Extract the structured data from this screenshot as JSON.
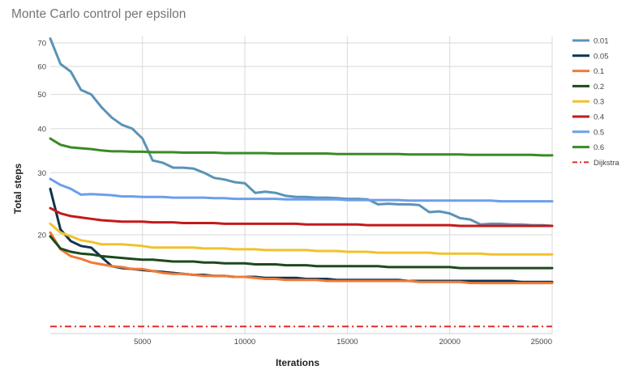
{
  "chart_data": {
    "type": "line",
    "title": "Monte Carlo control per epsilon",
    "xlabel": "Iterations",
    "ylabel": "Total steps",
    "y_scale": "log",
    "grid": true,
    "legend_position": "right",
    "xlim": [
      500,
      25000
    ],
    "ylim": [
      10.5,
      73
    ],
    "x_ticks": [
      {
        "value": 5000,
        "label": "5000"
      },
      {
        "value": 10000,
        "label": "10000"
      },
      {
        "value": 15000,
        "label": "15000"
      },
      {
        "value": 20000,
        "label": "20000"
      },
      {
        "value": 25000,
        "label": "25000"
      }
    ],
    "y_ticks": [
      {
        "value": 20,
        "label": "20"
      },
      {
        "value": 30,
        "label": "30"
      },
      {
        "value": 40,
        "label": "40"
      },
      {
        "value": 50,
        "label": "50"
      },
      {
        "value": 60,
        "label": "60"
      },
      {
        "value": 70,
        "label": "70"
      }
    ],
    "x": [
      500,
      1000,
      1500,
      2000,
      2500,
      3000,
      3500,
      4000,
      4500,
      5000,
      5500,
      6000,
      6500,
      7000,
      7500,
      8000,
      8500,
      9000,
      9500,
      10000,
      10500,
      11000,
      11500,
      12000,
      12500,
      13000,
      13500,
      14000,
      14500,
      15000,
      15500,
      16000,
      16500,
      17000,
      17500,
      18000,
      18500,
      19000,
      19500,
      20000,
      20500,
      21000,
      21500,
      22000,
      22500,
      23000,
      23500,
      24000,
      24500,
      25000
    ],
    "series": [
      {
        "name": "0.01",
        "color": "#5b93b6",
        "dash": "solid",
        "values": [
          72,
          61,
          58,
          51.5,
          50,
          46,
          43,
          41,
          40,
          37.5,
          32.5,
          32,
          31,
          31,
          30.8,
          30,
          29,
          28.7,
          28.2,
          28,
          26.3,
          26.5,
          26.3,
          25.8,
          25.6,
          25.6,
          25.5,
          25.5,
          25.4,
          25.3,
          25.3,
          25.2,
          24.4,
          24.5,
          24.4,
          24.4,
          24.3,
          23.2,
          23.3,
          23,
          22.3,
          22.1,
          21.4,
          21.5,
          21.5,
          21.4,
          21.4,
          21.3,
          21.3,
          21.2
        ]
      },
      {
        "name": "0.05",
        "color": "#0f3350",
        "dash": "solid",
        "values": [
          27,
          20.7,
          19.2,
          18.6,
          18.4,
          17.3,
          16.3,
          16.1,
          16.0,
          15.9,
          15.8,
          15.7,
          15.6,
          15.5,
          15.4,
          15.4,
          15.3,
          15.3,
          15.2,
          15.2,
          15.2,
          15.1,
          15.1,
          15.1,
          15.1,
          15.0,
          15.0,
          15.0,
          14.9,
          14.9,
          14.9,
          14.9,
          14.9,
          14.9,
          14.9,
          14.8,
          14.8,
          14.8,
          14.8,
          14.8,
          14.8,
          14.8,
          14.8,
          14.8,
          14.8,
          14.8,
          14.7,
          14.7,
          14.7,
          14.7
        ]
      },
      {
        "name": "0.1",
        "color": "#f07a36",
        "dash": "solid",
        "values": [
          20.3,
          18.2,
          17.4,
          17.1,
          16.7,
          16.5,
          16.3,
          16.2,
          16.0,
          16.0,
          15.8,
          15.6,
          15.5,
          15.5,
          15.4,
          15.3,
          15.3,
          15.3,
          15.2,
          15.2,
          15.1,
          15.0,
          15.0,
          14.9,
          14.9,
          14.9,
          14.9,
          14.8,
          14.8,
          14.8,
          14.8,
          14.8,
          14.8,
          14.8,
          14.8,
          14.8,
          14.7,
          14.7,
          14.7,
          14.7,
          14.7,
          14.6,
          14.6,
          14.6,
          14.6,
          14.6,
          14.6,
          14.6,
          14.6,
          14.6
        ]
      },
      {
        "name": "0.2",
        "color": "#1c4a1c",
        "dash": "solid",
        "values": [
          19.8,
          18.3,
          17.9,
          17.7,
          17.6,
          17.4,
          17.3,
          17.2,
          17.1,
          17.0,
          17.0,
          16.9,
          16.8,
          16.8,
          16.8,
          16.7,
          16.7,
          16.6,
          16.6,
          16.6,
          16.5,
          16.5,
          16.5,
          16.4,
          16.4,
          16.4,
          16.3,
          16.3,
          16.3,
          16.3,
          16.3,
          16.3,
          16.3,
          16.2,
          16.2,
          16.2,
          16.2,
          16.2,
          16.2,
          16.2,
          16.1,
          16.1,
          16.1,
          16.1,
          16.1,
          16.1,
          16.1,
          16.1,
          16.1,
          16.1
        ]
      },
      {
        "name": "0.3",
        "color": "#f2c12e",
        "dash": "solid",
        "values": [
          21.5,
          20.3,
          19.8,
          19.3,
          19.1,
          18.8,
          18.8,
          18.8,
          18.7,
          18.6,
          18.4,
          18.4,
          18.4,
          18.4,
          18.4,
          18.3,
          18.3,
          18.3,
          18.2,
          18.2,
          18.2,
          18.1,
          18.1,
          18.1,
          18.1,
          18.1,
          18.0,
          18.0,
          18.0,
          17.9,
          17.9,
          17.9,
          17.8,
          17.8,
          17.8,
          17.8,
          17.8,
          17.8,
          17.7,
          17.7,
          17.7,
          17.7,
          17.7,
          17.6,
          17.6,
          17.6,
          17.6,
          17.6,
          17.6,
          17.6
        ]
      },
      {
        "name": "0.4",
        "color": "#c41a1a",
        "dash": "solid",
        "values": [
          23.8,
          23.0,
          22.6,
          22.4,
          22.2,
          22.0,
          21.9,
          21.8,
          21.8,
          21.8,
          21.7,
          21.7,
          21.7,
          21.6,
          21.6,
          21.6,
          21.6,
          21.5,
          21.5,
          21.5,
          21.5,
          21.5,
          21.5,
          21.5,
          21.5,
          21.4,
          21.4,
          21.4,
          21.4,
          21.4,
          21.4,
          21.3,
          21.3,
          21.3,
          21.3,
          21.3,
          21.3,
          21.3,
          21.3,
          21.3,
          21.2,
          21.2,
          21.2,
          21.2,
          21.2,
          21.2,
          21.2,
          21.2,
          21.2,
          21.2
        ]
      },
      {
        "name": "0.5",
        "color": "#6d9eeb",
        "dash": "solid",
        "values": [
          28.8,
          27.7,
          27.0,
          26.0,
          26.1,
          26.0,
          25.9,
          25.7,
          25.7,
          25.6,
          25.6,
          25.6,
          25.5,
          25.5,
          25.5,
          25.5,
          25.4,
          25.4,
          25.3,
          25.3,
          25.3,
          25.3,
          25.3,
          25.2,
          25.2,
          25.2,
          25.2,
          25.2,
          25.2,
          25.1,
          25.1,
          25.1,
          25.1,
          25.1,
          25.1,
          25.0,
          25.0,
          25.0,
          25.0,
          25.0,
          25.0,
          25.0,
          25.0,
          25.0,
          24.9,
          24.9,
          24.9,
          24.9,
          24.9,
          24.9
        ]
      },
      {
        "name": "0.6",
        "color": "#3b8a25",
        "dash": "solid",
        "values": [
          37.5,
          36.0,
          35.4,
          35.2,
          35.0,
          34.7,
          34.5,
          34.5,
          34.4,
          34.4,
          34.3,
          34.3,
          34.3,
          34.2,
          34.2,
          34.2,
          34.2,
          34.1,
          34.1,
          34.1,
          34.1,
          34.1,
          34.0,
          34.0,
          34.0,
          34.0,
          34.0,
          34.0,
          33.9,
          33.9,
          33.9,
          33.9,
          33.9,
          33.9,
          33.9,
          33.8,
          33.8,
          33.8,
          33.8,
          33.8,
          33.8,
          33.7,
          33.7,
          33.7,
          33.7,
          33.7,
          33.7,
          33.7,
          33.6,
          33.6
        ]
      },
      {
        "name": "Dijkstra",
        "color": "#e02b2b",
        "dash": "dashdot",
        "values": [
          11,
          11,
          11,
          11,
          11,
          11,
          11,
          11,
          11,
          11,
          11,
          11,
          11,
          11,
          11,
          11,
          11,
          11,
          11,
          11,
          11,
          11,
          11,
          11,
          11,
          11,
          11,
          11,
          11,
          11,
          11,
          11,
          11,
          11,
          11,
          11,
          11,
          11,
          11,
          11,
          11,
          11,
          11,
          11,
          11,
          11,
          11,
          11,
          11,
          11
        ]
      }
    ]
  }
}
